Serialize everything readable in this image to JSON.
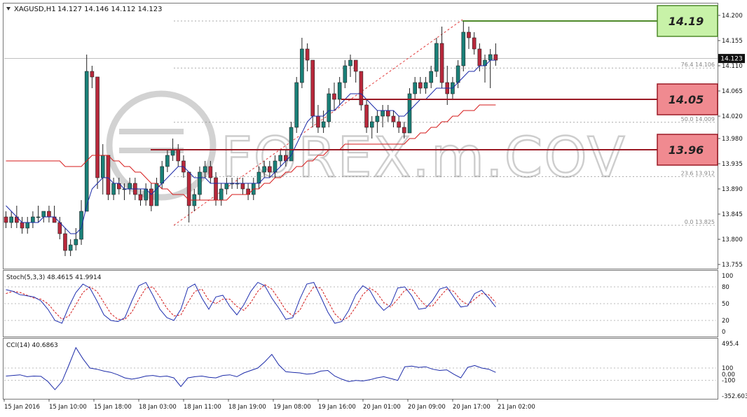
{
  "window": {
    "symbol_label": "XAGUSD,H1",
    "ohlc_label": "14.127 14.146 14.112 14.123",
    "current_price_label": "14.123",
    "watermark": "FOREX.m.COV"
  },
  "colors": {
    "bull": "#1a8078",
    "bear": "#b8283b",
    "ma_fast": "#1b2aa8",
    "ma_slow": "#d61a1a",
    "stoch_main": "#2030b0",
    "stoch_signal": "#d41a1a",
    "cci": "#1b2aa8",
    "green_box": "#c8f2a8",
    "red_box": "#f08a90"
  },
  "levels": [
    {
      "label": "14.19",
      "price": 14.19,
      "tone": "green"
    },
    {
      "label": "14.05",
      "price": 14.05,
      "tone": "red"
    },
    {
      "label": "13.96",
      "price": 13.96,
      "tone": "red"
    }
  ],
  "fibonacci": [
    {
      "label": "76.4  14.106",
      "price": 14.106
    },
    {
      "label": "50.0  14.009",
      "price": 14.009
    },
    {
      "label": "23.6  13.912",
      "price": 13.912
    },
    {
      "label": "0.0  13.825",
      "price": 13.825
    }
  ],
  "indicators": {
    "stoch_label": "Stoch(5,3,3) 48.4615 41.9914",
    "cci_label": "CCI(14) 40.6863",
    "stoch_ticks": [
      "100",
      "80",
      "50",
      "20",
      "0"
    ],
    "cci_ticks": [
      "495.4",
      "100",
      "0.00",
      "-100",
      "-352.603"
    ]
  },
  "chart_data": {
    "type": "candlestick",
    "price_ticks": [
      "14.200",
      "14.155",
      "14.110",
      "14.065",
      "14.020",
      "13.980",
      "13.935",
      "13.890",
      "13.845",
      "13.800",
      "13.755"
    ],
    "ylim": [
      13.755,
      14.2
    ],
    "x_labels": [
      "15 Jan 2016",
      "15 Jan 10:00",
      "15 Jan 18:00",
      "18 Jan 03:00",
      "18 Jan 11:00",
      "18 Jan 19:00",
      "19 Jan 08:00",
      "19 Jan 16:00",
      "20 Jan 01:00",
      "20 Jan 09:00",
      "20 Jan 17:00",
      "21 Jan 02:00"
    ],
    "candles": [
      [
        13.84,
        13.85,
        13.82,
        13.83
      ],
      [
        13.83,
        13.85,
        13.82,
        13.84
      ],
      [
        13.84,
        13.86,
        13.82,
        13.83
      ],
      [
        13.83,
        13.84,
        13.81,
        13.82
      ],
      [
        13.82,
        13.84,
        13.81,
        13.83
      ],
      [
        13.83,
        13.85,
        13.82,
        13.84
      ],
      [
        13.84,
        13.86,
        13.83,
        13.84
      ],
      [
        13.84,
        13.85,
        13.83,
        13.85
      ],
      [
        13.85,
        13.86,
        13.83,
        13.84
      ],
      [
        13.84,
        13.86,
        13.83,
        13.83
      ],
      [
        13.83,
        13.84,
        13.8,
        13.81
      ],
      [
        13.81,
        13.82,
        13.77,
        13.78
      ],
      [
        13.78,
        13.8,
        13.77,
        13.79
      ],
      [
        13.79,
        13.82,
        13.78,
        13.8
      ],
      [
        13.8,
        13.87,
        13.79,
        13.85
      ],
      [
        13.85,
        14.13,
        13.85,
        14.1
      ],
      [
        14.1,
        14.11,
        14.07,
        14.09
      ],
      [
        14.09,
        14.09,
        13.89,
        13.91
      ],
      [
        13.91,
        13.97,
        13.88,
        13.95
      ],
      [
        13.95,
        13.95,
        13.87,
        13.88
      ],
      [
        13.88,
        13.91,
        13.87,
        13.9
      ],
      [
        13.9,
        13.91,
        13.88,
        13.89
      ],
      [
        13.89,
        13.9,
        13.87,
        13.89
      ],
      [
        13.89,
        13.91,
        13.88,
        13.9
      ],
      [
        13.9,
        13.91,
        13.87,
        13.88
      ],
      [
        13.88,
        13.89,
        13.86,
        13.87
      ],
      [
        13.87,
        13.9,
        13.86,
        13.89
      ],
      [
        13.89,
        13.9,
        13.85,
        13.86
      ],
      [
        13.86,
        13.91,
        13.86,
        13.9
      ],
      [
        13.9,
        13.94,
        13.89,
        13.93
      ],
      [
        13.93,
        13.96,
        13.92,
        13.95
      ],
      [
        13.95,
        13.98,
        13.94,
        13.96
      ],
      [
        13.96,
        13.97,
        13.93,
        13.94
      ],
      [
        13.94,
        13.95,
        13.91,
        13.92
      ],
      [
        13.92,
        13.92,
        13.83,
        13.86
      ],
      [
        13.86,
        13.89,
        13.85,
        13.88
      ],
      [
        13.88,
        13.93,
        13.87,
        13.92
      ],
      [
        13.92,
        13.94,
        13.91,
        13.93
      ],
      [
        13.93,
        13.94,
        13.9,
        13.91
      ],
      [
        13.91,
        13.92,
        13.86,
        13.87
      ],
      [
        13.87,
        13.9,
        13.86,
        13.89
      ],
      [
        13.89,
        13.91,
        13.88,
        13.9
      ],
      [
        13.9,
        13.91,
        13.89,
        13.9
      ],
      [
        13.9,
        13.91,
        13.89,
        13.9
      ],
      [
        13.9,
        13.91,
        13.88,
        13.89
      ],
      [
        13.89,
        13.9,
        13.87,
        13.88
      ],
      [
        13.88,
        13.91,
        13.87,
        13.9
      ],
      [
        13.9,
        13.93,
        13.89,
        13.92
      ],
      [
        13.92,
        13.94,
        13.91,
        13.93
      ],
      [
        13.93,
        13.94,
        13.91,
        13.92
      ],
      [
        13.92,
        13.95,
        13.91,
        13.94
      ],
      [
        13.94,
        13.96,
        13.93,
        13.95
      ],
      [
        13.95,
        13.96,
        13.93,
        13.94
      ],
      [
        13.94,
        14.01,
        13.94,
        14.0
      ],
      [
        14.0,
        14.09,
        13.99,
        14.08
      ],
      [
        14.08,
        14.16,
        14.07,
        14.14
      ],
      [
        14.14,
        14.15,
        14.1,
        14.12
      ],
      [
        14.12,
        14.12,
        14.0,
        14.02
      ],
      [
        14.02,
        14.04,
        13.99,
        14.0
      ],
      [
        14.0,
        14.03,
        13.99,
        14.01
      ],
      [
        14.01,
        14.07,
        14.0,
        14.06
      ],
      [
        14.06,
        14.08,
        14.03,
        14.05
      ],
      [
        14.05,
        14.09,
        14.04,
        14.08
      ],
      [
        14.08,
        14.12,
        14.07,
        14.11
      ],
      [
        14.11,
        14.13,
        14.09,
        14.12
      ],
      [
        14.12,
        14.12,
        14.08,
        14.1
      ],
      [
        14.1,
        14.1,
        14.03,
        14.04
      ],
      [
        14.04,
        14.05,
        13.99,
        14.0
      ],
      [
        14.0,
        14.02,
        13.98,
        14.01
      ],
      [
        14.01,
        14.03,
        13.99,
        14.02
      ],
      [
        14.02,
        14.04,
        14.0,
        14.03
      ],
      [
        14.03,
        14.04,
        14.01,
        14.02
      ],
      [
        14.02,
        14.03,
        14.0,
        14.01
      ],
      [
        14.01,
        14.02,
        13.99,
        14.0
      ],
      [
        14.0,
        14.01,
        13.98,
        13.99
      ],
      [
        13.99,
        14.07,
        13.99,
        14.06
      ],
      [
        14.06,
        14.09,
        14.05,
        14.08
      ],
      [
        14.08,
        14.09,
        14.06,
        14.07
      ],
      [
        14.07,
        14.09,
        14.06,
        14.08
      ],
      [
        14.08,
        14.11,
        14.07,
        14.1
      ],
      [
        14.1,
        14.16,
        14.09,
        14.15
      ],
      [
        14.15,
        14.18,
        14.07,
        14.08
      ],
      [
        14.08,
        14.11,
        14.04,
        14.06
      ],
      [
        14.06,
        14.09,
        14.05,
        14.08
      ],
      [
        14.08,
        14.12,
        14.07,
        14.11
      ],
      [
        14.11,
        14.19,
        14.1,
        14.17
      ],
      [
        14.17,
        14.18,
        14.14,
        14.16
      ],
      [
        14.16,
        14.17,
        14.13,
        14.14
      ],
      [
        14.14,
        14.15,
        14.1,
        14.11
      ],
      [
        14.11,
        14.13,
        14.08,
        14.12
      ],
      [
        14.12,
        14.14,
        14.07,
        14.13
      ],
      [
        14.13,
        14.15,
        14.11,
        14.12
      ]
    ],
    "ma_fast": [
      13.86,
      13.85,
      13.84,
      13.83,
      13.83,
      13.83,
      13.83,
      13.84,
      13.84,
      13.84,
      13.83,
      13.82,
      13.81,
      13.81,
      13.82,
      13.86,
      13.89,
      13.9,
      13.91,
      13.91,
      13.9,
      13.9,
      13.89,
      13.89,
      13.89,
      13.89,
      13.89,
      13.88,
      13.89,
      13.9,
      13.91,
      13.92,
      13.93,
      13.93,
      13.92,
      13.91,
      13.91,
      13.91,
      13.9,
      13.9,
      13.9,
      13.9,
      13.9,
      13.9,
      13.9,
      13.9,
      13.9,
      13.9,
      13.91,
      13.91,
      13.92,
      13.93,
      13.94,
      13.95,
      13.97,
      13.99,
      14.01,
      14.02,
      14.02,
      14.02,
      14.03,
      14.03,
      14.04,
      14.05,
      14.06,
      14.06,
      14.06,
      14.05,
      14.04,
      14.03,
      14.03,
      14.03,
      14.03,
      14.02,
      14.02,
      14.03,
      14.04,
      14.05,
      14.05,
      14.06,
      14.07,
      14.07,
      14.07,
      14.07,
      14.08,
      14.09,
      14.1,
      14.1,
      14.11,
      14.11,
      14.12,
      14.12
    ],
    "ma_slow": [
      13.94,
      13.94,
      13.94,
      13.94,
      13.94,
      13.94,
      13.94,
      13.94,
      13.94,
      13.94,
      13.94,
      13.93,
      13.93,
      13.93,
      13.93,
      13.94,
      13.95,
      13.95,
      13.95,
      13.95,
      13.94,
      13.94,
      13.93,
      13.93,
      13.92,
      13.92,
      13.91,
      13.9,
      13.9,
      13.89,
      13.89,
      13.88,
      13.88,
      13.88,
      13.87,
      13.87,
      13.87,
      13.87,
      13.87,
      13.87,
      13.87,
      13.87,
      13.88,
      13.88,
      13.88,
      13.88,
      13.89,
      13.89,
      13.9,
      13.9,
      13.91,
      13.91,
      13.92,
      13.92,
      13.93,
      13.93,
      13.94,
      13.94,
      13.95,
      13.95,
      13.96,
      13.96,
      13.96,
      13.97,
      13.97,
      13.97,
      13.97,
      13.97,
      13.97,
      13.97,
      13.97,
      13.97,
      13.97,
      13.97,
      13.97,
      13.98,
      13.98,
      13.99,
      13.99,
      14.0,
      14.0,
      14.01,
      14.01,
      14.02,
      14.02,
      14.03,
      14.03,
      14.03,
      14.04,
      14.04,
      14.04,
      14.04
    ],
    "stoch_main": [
      75,
      72,
      66,
      64,
      62,
      55,
      40,
      20,
      15,
      45,
      70,
      85,
      78,
      55,
      30,
      20,
      18,
      25,
      55,
      82,
      88,
      65,
      40,
      25,
      20,
      40,
      78,
      85,
      60,
      40,
      62,
      65,
      45,
      30,
      48,
      72,
      88,
      82,
      60,
      42,
      22,
      25,
      58,
      85,
      88,
      62,
      35,
      15,
      18,
      38,
      66,
      82,
      74,
      52,
      38,
      48,
      78,
      80,
      64,
      40,
      42,
      56,
      76,
      80,
      62,
      44,
      46,
      68,
      74,
      60,
      44
    ],
    "stoch_signal": [
      68,
      72,
      70,
      65,
      60,
      58,
      50,
      35,
      22,
      28,
      48,
      70,
      80,
      72,
      52,
      32,
      22,
      22,
      35,
      58,
      78,
      80,
      62,
      42,
      28,
      30,
      52,
      72,
      76,
      56,
      50,
      58,
      58,
      45,
      38,
      52,
      72,
      84,
      76,
      58,
      38,
      28,
      38,
      62,
      80,
      78,
      55,
      32,
      20,
      26,
      44,
      66,
      78,
      70,
      52,
      44,
      58,
      74,
      76,
      60,
      46,
      46,
      62,
      76,
      72,
      56,
      48,
      58,
      68,
      66,
      52
    ],
    "cci": [
      -30,
      -20,
      -10,
      -40,
      -30,
      -35,
      -120,
      -250,
      -120,
      150,
      430,
      250,
      100,
      80,
      50,
      30,
      -10,
      -60,
      -80,
      -60,
      -30,
      -20,
      -40,
      -30,
      -60,
      -200,
      -60,
      -40,
      -30,
      -50,
      -60,
      -20,
      -10,
      -40,
      20,
      60,
      100,
      200,
      320,
      150,
      40,
      30,
      20,
      0,
      10,
      50,
      60,
      -30,
      -80,
      -120,
      -100,
      -110,
      -90,
      -60,
      -40,
      -70,
      -100,
      120,
      130,
      110,
      120,
      80,
      60,
      70,
      0,
      -60,
      110,
      140,
      100,
      80,
      30
    ]
  }
}
